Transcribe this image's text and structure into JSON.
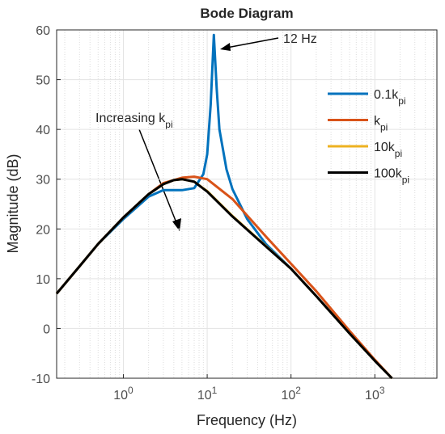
{
  "chart_data": {
    "type": "line",
    "title": "Bode Diagram",
    "xlabel": "Frequency  (Hz)",
    "ylabel": "Magnitude (dB)",
    "xscale": "log",
    "grid": true,
    "xlim": [
      0.16,
      5500
    ],
    "ylim": [
      -10,
      60
    ],
    "xticks": [
      {
        "value": 1,
        "label": "10^0"
      },
      {
        "value": 10,
        "label": "10^1"
      },
      {
        "value": 100,
        "label": "10^2"
      },
      {
        "value": 1000,
        "label": "10^3"
      }
    ],
    "yticks": [
      -10,
      0,
      10,
      20,
      30,
      40,
      50,
      60
    ],
    "annotations": [
      "12 Hz",
      "Increasing k_pi"
    ],
    "series": [
      {
        "name": "0.1k_pi",
        "color": "#0072BD",
        "x": [
          0.16,
          0.3,
          0.5,
          1,
          2,
          3,
          5,
          7,
          9,
          10,
          11,
          12,
          13,
          14,
          17,
          20,
          30,
          50,
          100,
          200,
          500,
          1000,
          1600
        ],
        "values": [
          7,
          12.5,
          17,
          22,
          26.5,
          27.8,
          27.8,
          28.2,
          31,
          35,
          45,
          59,
          48,
          40,
          32,
          28,
          22,
          17,
          12,
          6.5,
          -1,
          -6.5,
          -10
        ]
      },
      {
        "name": "k_pi",
        "color": "#D95319",
        "x": [
          0.16,
          0.3,
          0.5,
          1,
          2,
          3,
          5,
          7,
          10,
          20,
          50,
          100,
          200,
          500,
          1000,
          1600
        ],
        "values": [
          7,
          12.5,
          17,
          22.3,
          27,
          29.2,
          30.3,
          30.5,
          30,
          26,
          18.5,
          13,
          7.5,
          -0.5,
          -6.3,
          -10
        ]
      },
      {
        "name": "10k_pi",
        "color": "#EDB120",
        "x": [
          0.16,
          0.3,
          0.5,
          1,
          2,
          3,
          4,
          5,
          7,
          10,
          20,
          50,
          100,
          200,
          500,
          1000,
          1600
        ],
        "values": [
          7,
          12.5,
          17,
          22.3,
          27,
          29,
          29.8,
          30,
          29.5,
          27.6,
          22.6,
          16.6,
          12,
          6.5,
          -1,
          -6.5,
          -10
        ]
      },
      {
        "name": "100k_pi",
        "color": "#000000",
        "x": [
          0.16,
          0.3,
          0.5,
          1,
          2,
          3,
          4,
          5,
          7,
          10,
          20,
          50,
          100,
          200,
          500,
          1000,
          1600
        ],
        "values": [
          7,
          12.5,
          17,
          22.3,
          27,
          29,
          29.8,
          30,
          29.5,
          27.5,
          22.5,
          16.5,
          12,
          6.5,
          -1,
          -6.5,
          -10
        ]
      }
    ]
  }
}
